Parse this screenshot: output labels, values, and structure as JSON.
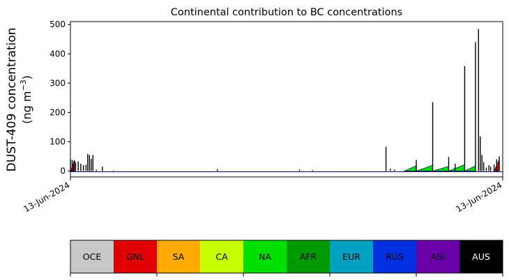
{
  "chart_data": {
    "type": "area",
    "title": "Continental contribution to BC concentrations",
    "ylabel_line1": "DUST-409 concentration",
    "ylabel_line2": "(ng m",
    "ylabel_sup": "−3",
    "ylabel_close": ")",
    "xlabel": "",
    "ylim": [
      -20,
      510
    ],
    "yticks": [
      0,
      100,
      200,
      300,
      400,
      500
    ],
    "xticks": [
      {
        "label": "13-Jun-2024",
        "pos": 0
      },
      {
        "label": "13-Jun-2024",
        "pos": 1
      }
    ],
    "grid": false,
    "spikes": [
      {
        "x": 0.0,
        "y": 40
      },
      {
        "x": 0.004,
        "y": 38
      },
      {
        "x": 0.008,
        "y": 35
      },
      {
        "x": 0.012,
        "y": 30
      },
      {
        "x": 0.018,
        "y": 33
      },
      {
        "x": 0.024,
        "y": 25
      },
      {
        "x": 0.03,
        "y": 20
      },
      {
        "x": 0.036,
        "y": 22
      },
      {
        "x": 0.04,
        "y": 58
      },
      {
        "x": 0.044,
        "y": 55
      },
      {
        "x": 0.048,
        "y": 42
      },
      {
        "x": 0.052,
        "y": 55
      },
      {
        "x": 0.06,
        "y": 5
      },
      {
        "x": 0.074,
        "y": 15
      },
      {
        "x": 0.1,
        "y": 2
      },
      {
        "x": 0.34,
        "y": 6
      },
      {
        "x": 0.53,
        "y": 5
      },
      {
        "x": 0.56,
        "y": 3
      },
      {
        "x": 0.73,
        "y": 83
      },
      {
        "x": 0.74,
        "y": 8
      },
      {
        "x": 0.75,
        "y": 5
      },
      {
        "x": 0.8,
        "y": 38
      },
      {
        "x": 0.838,
        "y": 235
      },
      {
        "x": 0.875,
        "y": 48
      },
      {
        "x": 0.89,
        "y": 25
      },
      {
        "x": 0.912,
        "y": 358
      },
      {
        "x": 0.937,
        "y": 440
      },
      {
        "x": 0.944,
        "y": 485
      },
      {
        "x": 0.948,
        "y": 118
      },
      {
        "x": 0.952,
        "y": 55
      },
      {
        "x": 0.956,
        "y": 30
      },
      {
        "x": 0.962,
        "y": 12
      },
      {
        "x": 0.968,
        "y": 20
      },
      {
        "x": 0.972,
        "y": 15
      },
      {
        "x": 0.98,
        "y": 22
      },
      {
        "x": 0.986,
        "y": 40
      },
      {
        "x": 0.992,
        "y": 50
      }
    ],
    "legend_placement": "bottom",
    "legend": [
      {
        "name": "OCE",
        "color": "#c8c8c8",
        "text_color": "#000000"
      },
      {
        "name": "GNL",
        "color": "#e00000",
        "text_color": "#000000"
      },
      {
        "name": "SA",
        "color": "#ffaa00",
        "text_color": "#000000"
      },
      {
        "name": "CA",
        "color": "#c8ff00",
        "text_color": "#000000"
      },
      {
        "name": "NA",
        "color": "#00e000",
        "text_color": "#000000"
      },
      {
        "name": "AFR",
        "color": "#009a00",
        "text_color": "#000000"
      },
      {
        "name": "EUR",
        "color": "#00a0c0",
        "text_color": "#000000"
      },
      {
        "name": "RUS",
        "color": "#0030e0",
        "text_color": "#000000"
      },
      {
        "name": "ASI",
        "color": "#6a00a8",
        "text_color": "#000000"
      },
      {
        "name": "AUS",
        "color": "#000000",
        "text_color": "#ffffff"
      }
    ]
  }
}
